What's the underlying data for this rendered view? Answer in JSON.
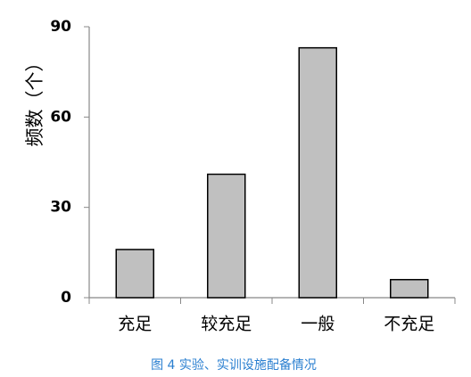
{
  "chart_data": {
    "type": "bar",
    "y_label": "频数（个）",
    "caption": "图 4 实验、实训设施配备情况",
    "categories": [
      "充足",
      "较充足",
      "一般",
      "不充足"
    ],
    "values": [
      16,
      41,
      83,
      6
    ],
    "color": "#c0c0c0",
    "ylim": [
      0,
      90
    ],
    "yticks": [
      0,
      30,
      60,
      90
    ],
    "grid": false
  }
}
